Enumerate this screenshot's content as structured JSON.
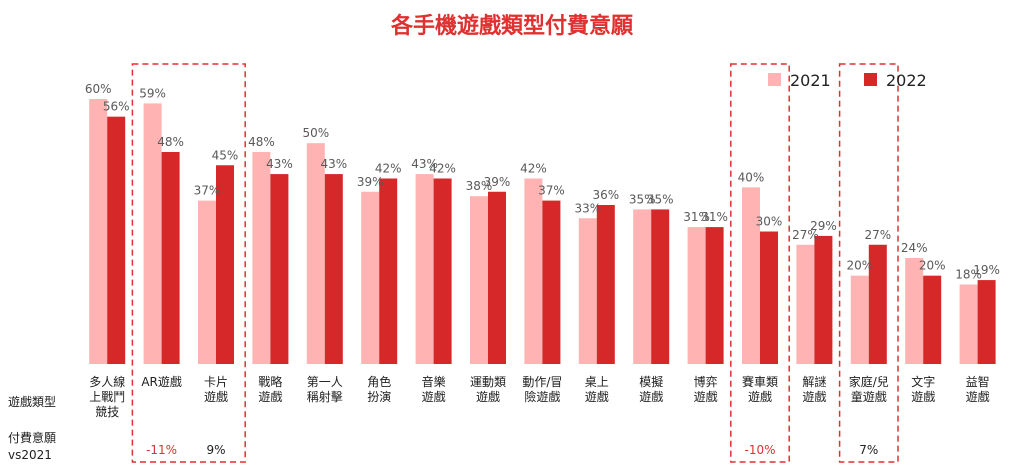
{
  "chart_data": {
    "type": "bar",
    "title": "各手機遊戲類型付費意願",
    "row_labels": {
      "category": "遊戲類型",
      "change_line1": "付費意願",
      "change_line2": "vs2021"
    },
    "categories": [
      [
        "多人線",
        "上戰鬥",
        "競技"
      ],
      [
        "AR遊戲"
      ],
      [
        "卡片",
        "遊戲"
      ],
      [
        "戰略",
        "遊戲"
      ],
      [
        "第一人",
        "稱射擊"
      ],
      [
        "角色",
        "扮演"
      ],
      [
        "音樂",
        "遊戲"
      ],
      [
        "運動類",
        "遊戲"
      ],
      [
        "動作/冒",
        "險遊戲"
      ],
      [
        "桌上",
        "遊戲"
      ],
      [
        "模擬",
        "遊戲"
      ],
      [
        "博弈",
        "遊戲"
      ],
      [
        "賽車類",
        "遊戲"
      ],
      [
        "解謎",
        "遊戲"
      ],
      [
        "家庭/兒",
        "童遊戲"
      ],
      [
        "文字",
        "遊戲"
      ],
      [
        "益智",
        "遊戲"
      ]
    ],
    "series": [
      {
        "name": "2021",
        "color": "#ffb3b3",
        "values": [
          60,
          59,
          37,
          48,
          50,
          39,
          43,
          38,
          42,
          33,
          35,
          31,
          40,
          27,
          20,
          24,
          18
        ],
        "labels": [
          "60%",
          "59%",
          "37%",
          "48%",
          "50%",
          "39%",
          "43%",
          "38%",
          "42%",
          "33%",
          "35%",
          "31%",
          "40%",
          "27%",
          "20%",
          "24%",
          "18%"
        ]
      },
      {
        "name": "2022",
        "color": "#d62828",
        "values": [
          56,
          48,
          45,
          43,
          43,
          42,
          42,
          39,
          37,
          36,
          35,
          31,
          30,
          29,
          27,
          20,
          19
        ],
        "labels": [
          "56%",
          "48%",
          "45%",
          "43%",
          "43%",
          "42%",
          "42%",
          "39%",
          "37%",
          "36%",
          "35%",
          "31%",
          "30%",
          "29%",
          "27%",
          "20%",
          "19%"
        ]
      }
    ],
    "ylim": [
      0,
      60
    ],
    "legend": "top-right",
    "highlights": [
      {
        "index": 1,
        "change": "-11%",
        "color": "#e03030"
      },
      {
        "index": 2,
        "change": "9%",
        "color": "#222222"
      },
      {
        "index": 12,
        "change": "-10%",
        "color": "#e03030"
      },
      {
        "index": 14,
        "change": "7%",
        "color": "#222222"
      }
    ],
    "highlight_box_color": "#e03030",
    "title_color": "#e03030"
  }
}
